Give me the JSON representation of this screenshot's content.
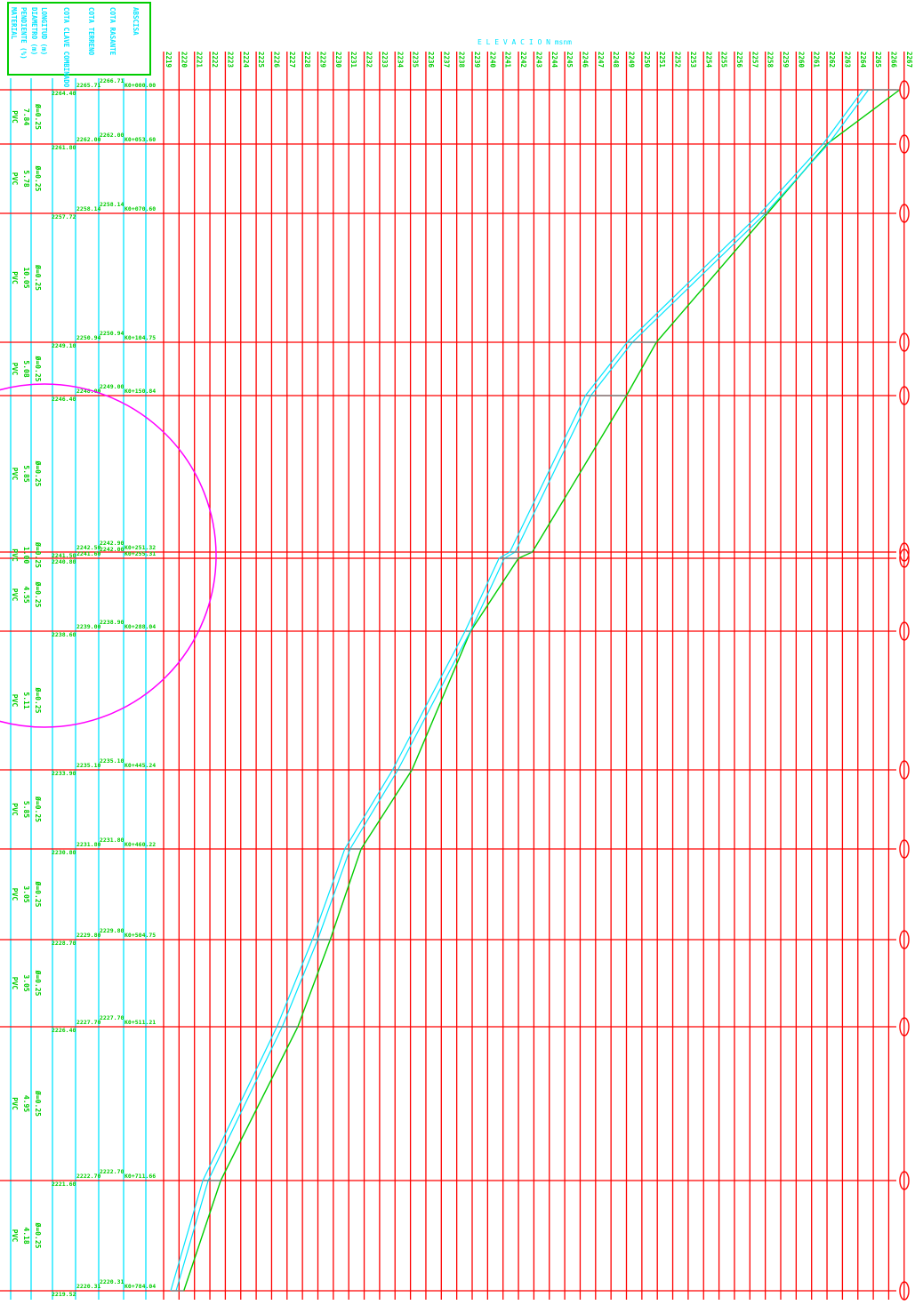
{
  "title": "E L E V A C I O N  msnm",
  "legend": [
    "ABSCISA",
    "COTA RASANTE",
    "COTA TERRENO",
    "COTA CLAVE COMBINADO",
    "LONGITUD (m)",
    "DIAMETRO (m)",
    "PENDIENTE (%)",
    "MATERIAL"
  ],
  "elevations": [
    "2219",
    "2220",
    "2221",
    "2222",
    "2223",
    "2224",
    "2225",
    "2226",
    "2227",
    "2228",
    "2229",
    "2230",
    "2231",
    "2232",
    "2233",
    "2234",
    "2235",
    "2236",
    "2237",
    "2238",
    "2239",
    "2240",
    "2241",
    "2242",
    "2243",
    "2244",
    "2245",
    "2246",
    "2247",
    "2248",
    "2249",
    "2250",
    "2251",
    "2252",
    "2253",
    "2254",
    "2255",
    "2256",
    "2257",
    "2258",
    "2259",
    "2260",
    "2261",
    "2262",
    "2263",
    "2264",
    "2265",
    "2266",
    "2267"
  ],
  "stations": [
    {
      "abscisa": "K0+000.00",
      "rasante": "2266.71",
      "terreno": "2265.71",
      "clave": "2264.40"
    },
    {
      "abscisa": "K0+053.60",
      "rasante": "2262.00",
      "terreno": "2262.00",
      "clave": "2261.80"
    },
    {
      "abscisa": "K0+070.60",
      "rasante": "2258.14",
      "terreno": "2258.14",
      "clave": "2257.72"
    },
    {
      "abscisa": "K0+104.75",
      "rasante": "2250.94",
      "terreno": "2250.94",
      "clave": "2249.10"
    },
    {
      "abscisa": "K0+150.84",
      "rasante": "2249.00",
      "terreno": "2248.00",
      "clave": "2246.40"
    },
    {
      "abscisa": "K0+251.32",
      "rasante": "2242.90",
      "terreno": "2242.50",
      "clave": "2241.50"
    },
    {
      "abscisa": "K0+255.31",
      "rasante": "2242.00",
      "terreno": "2241.60",
      "clave": "2240.80"
    },
    {
      "abscisa": "K0+288.04",
      "rasante": "2238.90",
      "terreno": "2239.00",
      "clave": "2238.60"
    },
    {
      "abscisa": "K0+445.24",
      "rasante": "2235.10",
      "terreno": "2235.10",
      "clave": "2233.90"
    },
    {
      "abscisa": "K0+460.22",
      "rasante": "2231.80",
      "terreno": "2231.80",
      "clave": "2230.80"
    },
    {
      "abscisa": "K0+504.75",
      "rasante": "2229.80",
      "terreno": "2229.80",
      "clave": "2228.70"
    },
    {
      "abscisa": "K0+511.21",
      "rasante": "2227.70",
      "terreno": "2227.70",
      "clave": "2226.40"
    },
    {
      "abscisa": "K0+711.66",
      "rasante": "2222.70",
      "terreno": "2222.70",
      "clave": "2221.60"
    },
    {
      "abscisa": "K0+784.04",
      "rasante": "2220.31",
      "terreno": "2220.31",
      "clave": "2219.52"
    }
  ],
  "segments": [
    {
      "material": "PVC",
      "pendiente": "7.84",
      "diametro": "Ø=0.25"
    },
    {
      "material": "PVC",
      "pendiente": "5.78",
      "diametro": "Ø=0.25"
    },
    {
      "material": "PVC",
      "pendiente": "10.05",
      "diametro": "Ø=0.25"
    },
    {
      "material": "PVC",
      "pendiente": "5.08",
      "diametro": "Ø=0.25"
    },
    {
      "material": "PVC",
      "pendiente": "5.85",
      "diametro": "Ø=0.25"
    },
    {
      "material": "PVC",
      "pendiente": "1.00",
      "diametro": "Ø=0.25"
    },
    {
      "material": "PVC",
      "pendiente": "4.55",
      "diametro": "Ø=0.25"
    },
    {
      "material": "PVC",
      "pendiente": "5.11",
      "diametro": "Ø=0.25"
    },
    {
      "material": "PVC",
      "pendiente": "5.85",
      "diametro": "Ø=0.25"
    },
    {
      "material": "PVC",
      "pendiente": "3.05",
      "diametro": "Ø=0.25"
    },
    {
      "material": "PVC",
      "pendiente": "3.05",
      "diametro": "Ø=0.25"
    },
    {
      "material": "PVC",
      "pendiente": "4.95",
      "diametro": "Ø=0.25"
    },
    {
      "material": "PVC",
      "pendiente": "4.18",
      "diametro": "Ø=0.25"
    }
  ],
  "colors": {
    "grid": "#ff0000",
    "cyan": "#00e5ff",
    "green": "#00cc00",
    "magenta": "#ff00ff",
    "well": "#ff0000",
    "grey": "#808080"
  }
}
